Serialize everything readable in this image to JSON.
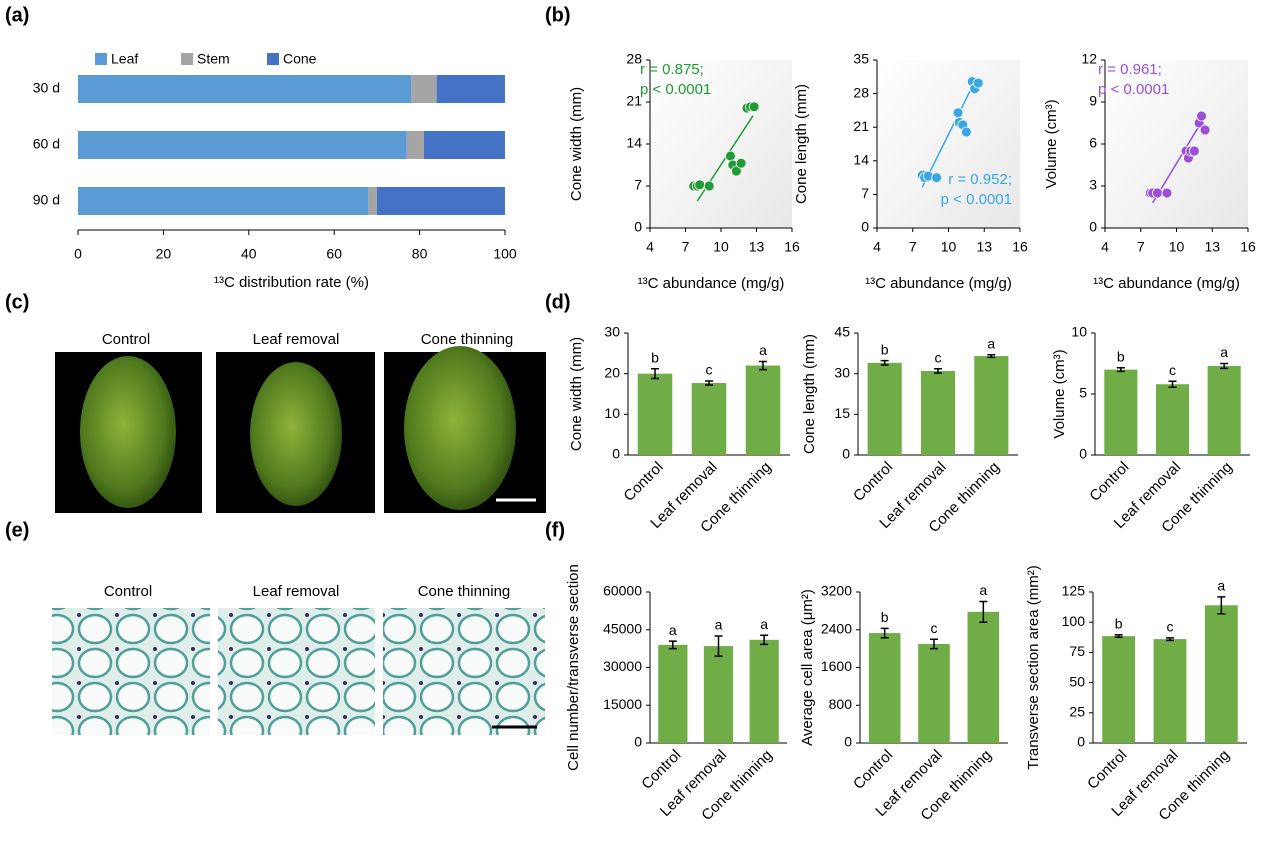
{
  "panel_labels": [
    "(a)",
    "(b)",
    "(c)",
    "(d)",
    "(e)",
    "(f)"
  ],
  "photos_c": {
    "labels": [
      "Control",
      "Leaf removal",
      "Cone thinning"
    ]
  },
  "micrographs_e": {
    "labels": [
      "Control",
      "Leaf removal",
      "Cone thinning"
    ]
  },
  "chart_data": [
    {
      "type": "stacked_bar_h",
      "categories": [
        "30 d",
        "60 d",
        "90 d"
      ],
      "series": [
        {
          "name": "Leaf",
          "color": "#5b9bd5",
          "values": [
            78,
            77,
            68
          ]
        },
        {
          "name": "Stem",
          "color": "#a5a5a5",
          "values": [
            6,
            4,
            2
          ]
        },
        {
          "name": "Cone",
          "color": "#4472c4",
          "values": [
            16,
            19,
            30
          ]
        }
      ],
      "xlabel": "¹³C distribution rate (%)",
      "xlim": [
        0,
        100
      ],
      "xticks": [
        0,
        20,
        40,
        60,
        80,
        100
      ]
    },
    {
      "type": "scatter",
      "color": "#1f9a35",
      "xlabel": "¹³C abundance (mg/g)",
      "ylabel": "Cone width (mm)",
      "x": [
        7.7,
        8.0,
        8.2,
        9.0,
        10.8,
        11.0,
        11.3,
        11.7,
        12.2,
        12.5,
        12.8
      ],
      "values": [
        7,
        7,
        7.2,
        7,
        12,
        10.5,
        9.5,
        10.8,
        20,
        20.2,
        20.2
      ],
      "fit": {
        "x": [
          8,
          12.7
        ],
        "values": [
          4.5,
          18.7
        ]
      },
      "annotations": [
        "r = 0.875;",
        "p < 0.0001"
      ],
      "xlim": [
        4,
        16
      ],
      "xticks": [
        4,
        7,
        10,
        13,
        16
      ],
      "ylim": [
        0,
        28
      ],
      "yticks": [
        0,
        7,
        14,
        21,
        28
      ]
    },
    {
      "type": "scatter",
      "color": "#3aa7e4",
      "xlabel": "¹³C abundance (mg/g)",
      "ylabel": "Cone length (mm)",
      "x": [
        7.8,
        8.0,
        8.3,
        9.0,
        10.8,
        10.9,
        11.2,
        11.5,
        12.0,
        12.2,
        12.5
      ],
      "values": [
        11,
        10.5,
        10.8,
        10.5,
        24,
        22,
        21.5,
        20,
        30.5,
        29,
        30.2
      ],
      "fit": {
        "x": [
          7.8,
          12.3
        ],
        "values": [
          8.5,
          31
        ]
      },
      "annotations": [
        "r = 0.952;",
        "p < 0.0001"
      ],
      "xlim": [
        4,
        16
      ],
      "xticks": [
        4,
        7,
        10,
        13,
        16
      ],
      "ylim": [
        0,
        35
      ],
      "yticks": [
        0,
        7,
        14,
        21,
        28,
        35
      ]
    },
    {
      "type": "scatter",
      "color": "#9a4fd6",
      "xlabel": "¹³C abundance (mg/g)",
      "ylabel": "Volume (cm³)",
      "x": [
        7.8,
        8.0,
        8.4,
        9.2,
        10.8,
        11.0,
        11.2,
        11.5,
        11.9,
        12.1,
        12.4
      ],
      "values": [
        2.5,
        2.5,
        2.5,
        2.5,
        5.5,
        5,
        5.5,
        5.5,
        7.5,
        8,
        7
      ],
      "fit": {
        "x": [
          8,
          12.4
        ],
        "values": [
          1.8,
          8
        ]
      },
      "annotations": [
        "r = 0.961;",
        "p < 0.0001"
      ],
      "xlim": [
        4,
        16
      ],
      "xticks": [
        4,
        7,
        10,
        13,
        16
      ],
      "ylim": [
        0,
        12
      ],
      "yticks": [
        0,
        3,
        6,
        9,
        12
      ]
    },
    {
      "type": "bar",
      "color": "#70ad47",
      "ylabel": "Cone width (mm)",
      "categories": [
        "Control",
        "Leaf removal",
        "Cone thinning"
      ],
      "values": [
        20,
        17.7,
        22
      ],
      "errors": [
        1.2,
        0.5,
        1
      ],
      "letters": [
        "b",
        "c",
        "a"
      ],
      "ylim": [
        0,
        30
      ],
      "yticks": [
        0,
        10,
        20,
        30
      ]
    },
    {
      "type": "bar",
      "color": "#70ad47",
      "ylabel": "Cone length (mm)",
      "categories": [
        "Control",
        "Leaf removal",
        "Cone thinning"
      ],
      "values": [
        34,
        31,
        36.5
      ],
      "errors": [
        0.8,
        0.8,
        0.5
      ],
      "letters": [
        "b",
        "c",
        "a"
      ],
      "ylim": [
        0,
        45
      ],
      "yticks": [
        0,
        15,
        30,
        45
      ]
    },
    {
      "type": "bar",
      "color": "#70ad47",
      "ylabel": "Volume (cm³)",
      "categories": [
        "Control",
        "Leaf removal",
        "Cone thinning"
      ],
      "values": [
        7,
        5.8,
        7.3
      ],
      "errors": [
        0.15,
        0.25,
        0.2
      ],
      "letters": [
        "b",
        "c",
        "a"
      ],
      "ylim": [
        0,
        10
      ],
      "yticks": [
        0,
        5,
        10
      ]
    },
    {
      "type": "bar",
      "color": "#70ad47",
      "ylabel": "Cell number/transverse section",
      "categories": [
        "Control",
        "Leaf removal",
        "Cone thinning"
      ],
      "values": [
        39000,
        38500,
        41000
      ],
      "errors": [
        1500,
        4000,
        1800
      ],
      "letters": [
        "a",
        "a",
        "a"
      ],
      "ylim": [
        0,
        60000
      ],
      "yticks": [
        0,
        15000,
        30000,
        45000,
        60000
      ]
    },
    {
      "type": "bar",
      "color": "#70ad47",
      "ylabel": "Average cell area (μm²)",
      "categories": [
        "Control",
        "Leaf removal",
        "Cone thinning"
      ],
      "values": [
        2330,
        2100,
        2780
      ],
      "errors": [
        100,
        100,
        220
      ],
      "letters": [
        "b",
        "c",
        "a"
      ],
      "ylim": [
        0,
        3200
      ],
      "yticks": [
        0,
        800,
        1600,
        2400,
        3200
      ]
    },
    {
      "type": "bar",
      "color": "#70ad47",
      "ylabel": "Transverse section area (mm²)",
      "categories": [
        "Control",
        "Leaf removal",
        "Cone thinning"
      ],
      "values": [
        88.5,
        86,
        114
      ],
      "errors": [
        1,
        1,
        7
      ],
      "letters": [
        "b",
        "c",
        "a"
      ],
      "ylim": [
        0,
        125
      ],
      "yticks": [
        0,
        25,
        50,
        75,
        100,
        125
      ]
    }
  ]
}
